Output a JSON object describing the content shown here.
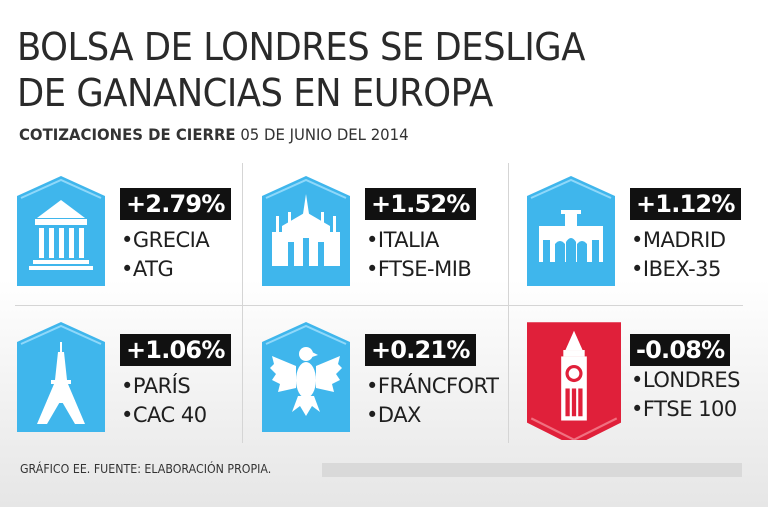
{
  "header": {
    "title_line1": "BOLSA DE LONDRES SE DESLIGA",
    "title_line2": "DE GANANCIAS EN EUROPA",
    "subtitle_bold": "COTIZACIONES DE CIERRE",
    "subtitle_date": "05 DE JUNIO DEL 2014"
  },
  "colors": {
    "positive": "#3fb6ec",
    "negative": "#e0203a",
    "label_bg": "#111111"
  },
  "markets": [
    {
      "change": "+2.79%",
      "city": "•GRECIA",
      "index": "•ATG",
      "icon": "greek-temple-icon"
    },
    {
      "change": "+1.52%",
      "city": "•ITALIA",
      "index": "•FTSE-MIB",
      "icon": "milan-cathedral-icon"
    },
    {
      "change": "+1.12%",
      "city": "•MADRID",
      "index": "•IBEX-35",
      "icon": "puerta-de-alcala-icon"
    },
    {
      "change": "+1.06%",
      "city": "•PARÍS",
      "index": "•CAC 40",
      "icon": "eiffel-tower-icon"
    },
    {
      "change": "+0.21%",
      "city": "•FRÁNCFORT",
      "index": "•DAX",
      "icon": "german-eagle-icon"
    },
    {
      "change": "-0.08%",
      "city": "•LONDRES",
      "index": "•FTSE 100",
      "icon": "big-ben-icon"
    }
  ],
  "footer": {
    "source": "GRÁFICO EE. FUENTE: ELABORACIÓN PROPIA."
  }
}
